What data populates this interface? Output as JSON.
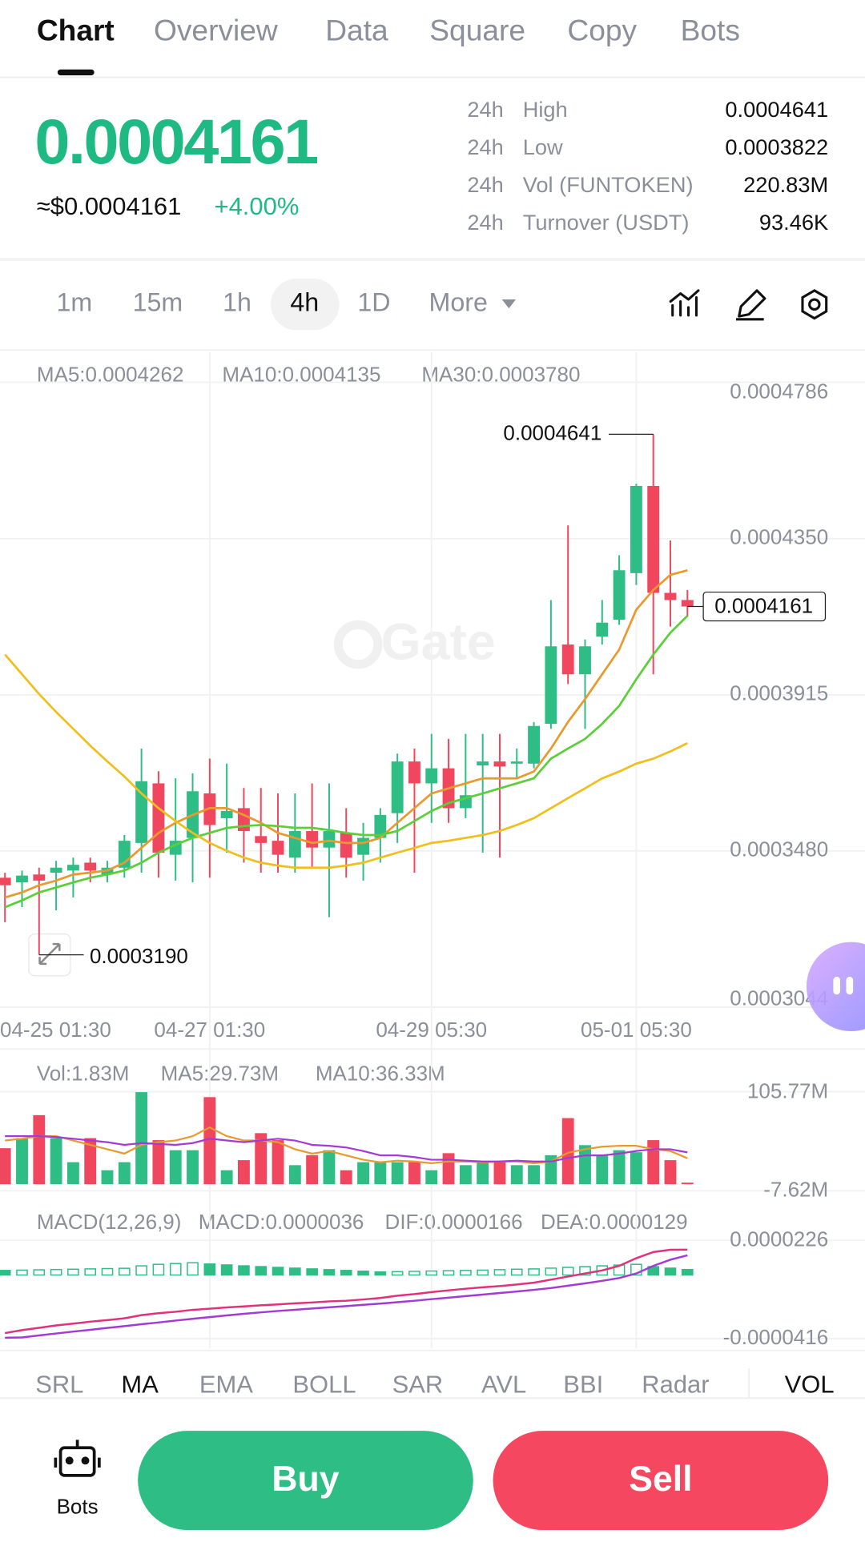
{
  "tabs": [
    "Chart",
    "Overview",
    "Data",
    "Square",
    "Copy",
    "Bots"
  ],
  "price": {
    "last": "0.0004161",
    "usd": "≈$0.0004161",
    "change": "+4.00%"
  },
  "stats": [
    {
      "period": "24h",
      "label": "High",
      "value": "0.0004641"
    },
    {
      "period": "24h",
      "label": "Low",
      "value": "0.0003822"
    },
    {
      "period": "24h",
      "label": "Vol (FUNTOKEN)",
      "value": "220.83M"
    },
    {
      "period": "24h",
      "label": "Turnover (USDT)",
      "value": "93.46K"
    }
  ],
  "intervals": [
    "1m",
    "15m",
    "1h",
    "4h",
    "1D",
    "More"
  ],
  "chart_data": {
    "type": "candlestick",
    "watermark": "Gate",
    "categories": [
      "04-25 01:30",
      null,
      null,
      null,
      null,
      null,
      null,
      null,
      null,
      null,
      null,
      null,
      "04-27 01:30",
      null,
      null,
      null,
      null,
      null,
      null,
      null,
      null,
      null,
      null,
      null,
      null,
      "04-29 05:30",
      null,
      null,
      null,
      null,
      null,
      null,
      null,
      null,
      null,
      null,
      null,
      "05-01 05:30",
      null,
      null,
      null
    ],
    "open": [
      0.0003405,
      0.0003392,
      0.0003414,
      0.0003419,
      0.0003425,
      0.0003447,
      0.0003414,
      0.0003433,
      0.0003502,
      0.0003668,
      0.0003469,
      0.0003516,
      0.000364,
      0.0003571,
      0.0003599,
      0.0003521,
      0.0003508,
      0.0003461,
      0.0003535,
      0.0003489,
      0.000353,
      0.0003469,
      0.0003516,
      0.0003585,
      0.0003729,
      0.0003668,
      0.000371,
      0.0003599,
      0.0003718,
      0.0003729,
      0.0003723,
      0.0003723,
      0.0003834,
      0.0004055,
      0.0003972,
      0.0004077,
      0.0004124,
      0.0004254,
      0.0004497,
      0.0004199,
      0.0004179
    ],
    "high": [
      0.0003419,
      0.0003425,
      0.0003433,
      0.0003452,
      0.0003461,
      0.0003461,
      0.0003452,
      0.0003524,
      0.0003765,
      0.0003702,
      0.0003682,
      0.0003696,
      0.0003737,
      0.0003723,
      0.0003655,
      0.0003655,
      0.000364,
      0.000364,
      0.0003668,
      0.0003668,
      0.0003599,
      0.0003558,
      0.0003599,
      0.0003751,
      0.0003765,
      0.0003806,
      0.0003792,
      0.0003806,
      0.0003806,
      0.0003806,
      0.0003765,
      0.0003839,
      0.0004179,
      0.0004387,
      0.0004069,
      0.0004179,
      0.0004304,
      0.0004503,
      0.0004641,
      0.0004345,
      0.0004207
    ],
    "low": [
      0.0003281,
      0.0003323,
      0.000319,
      0.0003314,
      0.000335,
      0.0003392,
      0.0003392,
      0.0003405,
      0.0003419,
      0.0003405,
      0.0003397,
      0.0003392,
      0.0003405,
      0.0003475,
      0.0003447,
      0.0003419,
      0.0003419,
      0.0003419,
      0.0003433,
      0.0003295,
      0.0003405,
      0.0003397,
      0.0003447,
      0.0003502,
      0.0003419,
      0.0003558,
      0.0003558,
      0.0003571,
      0.0003475,
      0.0003461,
      0.0003682,
      0.000371,
      0.000382,
      0.0003945,
      0.000382,
      0.0004055,
      0.000411,
      0.0004221,
      0.0003972,
      0.0004105,
      0.0004132
    ],
    "close": [
      0.0003384,
      0.0003411,
      0.0003397,
      0.0003433,
      0.0003441,
      0.0003425,
      0.0003433,
      0.0003508,
      0.0003674,
      0.0003475,
      0.0003508,
      0.0003646,
      0.0003552,
      0.0003591,
      0.0003535,
      0.0003502,
      0.0003469,
      0.0003535,
      0.0003489,
      0.0003535,
      0.0003461,
      0.0003516,
      0.000358,
      0.0003729,
      0.0003668,
      0.000371,
      0.0003599,
      0.0003635,
      0.0003729,
      0.0003715,
      0.0003729,
      0.0003828,
      0.000405,
      0.0003972,
      0.000405,
      0.0004116,
      0.0004262,
      0.0004497,
      0.0004199,
      0.0004179,
      0.0004161
    ],
    "up_color": "#2ebd85",
    "down_color": "#f0465e",
    "ma": [
      {
        "label": "MA5:0.0004262",
        "color": "#e89a2e",
        "values": [
          0.000335,
          0.0003364,
          0.0003384,
          0.0003397,
          0.0003414,
          0.0003419,
          0.0003425,
          0.0003447,
          0.0003488,
          0.000353,
          0.0003558,
          0.000358,
          0.0003599,
          0.0003599,
          0.000358,
          0.0003558,
          0.000353,
          0.0003516,
          0.0003502,
          0.0003508,
          0.0003502,
          0.0003502,
          0.0003516,
          0.0003558,
          0.0003599,
          0.000364,
          0.0003654,
          0.0003668,
          0.0003682,
          0.0003682,
          0.0003682,
          0.0003701,
          0.0003765,
          0.0003839,
          0.0003903,
          0.0003972,
          0.0004041,
          0.0004152,
          0.0004207,
          0.0004249,
          0.0004262
        ]
      },
      {
        "label": "MA10:0.0004135",
        "color": "#5bcf3a",
        "values": [
          0.0003323,
          0.0003342,
          0.0003364,
          0.0003378,
          0.0003392,
          0.0003405,
          0.0003414,
          0.0003425,
          0.0003447,
          0.0003475,
          0.0003497,
          0.0003516,
          0.000353,
          0.0003544,
          0.0003549,
          0.0003552,
          0.0003549,
          0.0003544,
          0.0003544,
          0.0003538,
          0.000353,
          0.0003524,
          0.0003524,
          0.0003535,
          0.0003563,
          0.0003591,
          0.0003613,
          0.0003627,
          0.000364,
          0.0003654,
          0.0003668,
          0.0003682,
          0.0003737,
          0.0003765,
          0.0003792,
          0.0003834,
          0.0003884,
          0.0003958,
          0.0004027,
          0.0004088,
          0.0004135
        ]
      },
      {
        "label": "MA30:0.0003780",
        "color": "#efbf1c",
        "values": [
          0.0004027,
          0.0003972,
          0.0003917,
          0.0003867,
          0.000382,
          0.0003773,
          0.0003729,
          0.0003687,
          0.000364,
          0.0003599,
          0.0003563,
          0.000353,
          0.0003502,
          0.000348,
          0.0003461,
          0.0003447,
          0.0003439,
          0.0003433,
          0.0003433,
          0.0003433,
          0.0003439,
          0.0003447,
          0.0003461,
          0.0003475,
          0.0003488,
          0.0003502,
          0.0003508,
          0.0003516,
          0.0003524,
          0.0003535,
          0.0003552,
          0.0003571,
          0.0003599,
          0.0003627,
          0.0003654,
          0.0003682,
          0.0003701,
          0.0003723,
          0.0003737,
          0.0003757,
          0.000378
        ]
      }
    ],
    "ylim": [
      0.0003044,
      0.0004786
    ],
    "yticks": [
      0.0004786,
      {
        "value": 0.000435,
        "label": "0.0004350"
      },
      0.0003915,
      {
        "value": 0.000348,
        "label": "0.0003480"
      },
      0.0003044
    ],
    "grid": true,
    "high_marker": 0.0004641,
    "low_marker": {
      "value": 0.000319,
      "label": "0.0003190"
    },
    "last_price": 0.0004161,
    "volume": {
      "legend": "Vol:1.83M",
      "values": [
        41.2,
        52.7,
        79.0,
        52.7,
        25.2,
        52.7,
        16.0,
        25.2,
        105.3,
        50.4,
        38.9,
        38.9,
        99.6,
        16.0,
        27.5,
        58.4,
        50.4,
        21.8,
        33.2,
        38.9,
        16.0,
        25.2,
        25.2,
        25.2,
        25.2,
        16.0,
        35.5,
        21.8,
        25.2,
        25.2,
        21.8,
        21.8,
        33.2,
        75.6,
        44.7,
        33.2,
        38.9,
        36.6,
        50.4,
        27.5,
        1.83
      ],
      "ylim": [
        -7.62,
        105.77
      ],
      "yticks": [
        {
          "value": 105.77,
          "label": "105.77M"
        },
        {
          "value": -7.62,
          "label": "-7.62M"
        }
      ],
      "ma": [
        {
          "label": "MA5:29.73M",
          "color": "#e89a2e",
          "values": [
            50,
            52,
            55,
            55,
            50,
            45,
            40,
            35,
            45,
            48,
            50,
            55,
            65,
            55,
            50,
            50,
            48,
            40,
            35,
            38,
            33,
            28,
            25,
            27,
            26,
            24,
            26,
            26,
            25,
            26,
            26,
            24,
            26,
            36,
            40,
            43,
            44,
            44,
            40,
            38,
            29.73
          ]
        },
        {
          "label": "MA10:36.33M",
          "color": "#a43ad6",
          "values": [
            55,
            55,
            55,
            54,
            52,
            50,
            48,
            45,
            47,
            46,
            45,
            47,
            52,
            50,
            48,
            50,
            52,
            50,
            45,
            44,
            42,
            38,
            33,
            33,
            31,
            28,
            28,
            27,
            26,
            26,
            27,
            26,
            26,
            30,
            33,
            33,
            35,
            38,
            40,
            40,
            36.33
          ]
        }
      ]
    },
    "macd": {
      "title": "MACD(12,26,9)",
      "macd_label": "MACD:0.0000036",
      "dif_label": "DIF:0.0000166",
      "dea_label": "DEA:0.0000129",
      "macd_color": "#e8bf1a",
      "dif_color": "#e0317a",
      "dea_color": "#a43ad6",
      "histogram": [
        3e-06,
        3.2e-06,
        3.4e-06,
        3.6e-06,
        3.8e-06,
        4e-06,
        4.2e-06,
        4.4e-06,
        6e-06,
        7e-06,
        7.5e-06,
        8e-06,
        7.2e-06,
        6.6e-06,
        6e-06,
        5.5e-06,
        5e-06,
        4.5e-06,
        4e-06,
        3.5e-06,
        3e-06,
        2.5e-06,
        2e-06,
        2.2e-06,
        2.4e-06,
        2.6e-06,
        2.8e-06,
        3e-06,
        3.2e-06,
        3.5e-06,
        3.8e-06,
        4e-06,
        4.5e-06,
        5e-06,
        5.5e-06,
        6e-06,
        6.5e-06,
        7e-06,
        5.5e-06,
        4.5e-06,
        3.6e-06
      ],
      "dif": [
        -3.8e-05,
        -3.6e-05,
        -3.45e-05,
        -3.3e-05,
        -3.18e-05,
        -3.05e-05,
        -2.95e-05,
        -2.83e-05,
        -2.62e-05,
        -2.5e-05,
        -2.4e-05,
        -2.28e-05,
        -2.2e-05,
        -2.12e-05,
        -2.05e-05,
        -1.98e-05,
        -1.92e-05,
        -1.85e-05,
        -1.8e-05,
        -1.72e-05,
        -1.68e-05,
        -1.6e-05,
        -1.5e-05,
        -1.35e-05,
        -1.25e-05,
        -1.12e-05,
        -1e-05,
        -9e-06,
        -8e-06,
        -7.2e-06,
        -6.2e-06,
        -5e-06,
        -3e-06,
        -1e-06,
        1e-06,
        3e-06,
        6e-06,
        1.1e-05,
        1.5e-05,
        1.65e-05,
        1.66e-05
      ],
      "dea": [
        -4.1e-05,
        -4.08e-05,
        -3.95e-05,
        -3.82e-05,
        -3.7e-05,
        -3.58e-05,
        -3.46e-05,
        -3.34e-05,
        -3.22e-05,
        -3.1e-05,
        -2.98e-05,
        -2.86e-05,
        -2.75e-05,
        -2.64e-05,
        -2.54e-05,
        -2.44e-05,
        -2.35e-05,
        -2.27e-05,
        -2.19e-05,
        -2.11e-05,
        -2.03e-05,
        -1.95e-05,
        -1.87e-05,
        -1.78e-05,
        -1.68e-05,
        -1.58e-05,
        -1.48e-05,
        -1.38e-05,
        -1.28e-05,
        -1.18e-05,
        -1.08e-05,
        -9.7e-06,
        -8.5e-06,
        -7e-06,
        -5.5e-06,
        -3.8e-06,
        -2e-06,
        1e-06,
        6e-06,
        1e-05,
        1.29e-05
      ],
      "ylim": [
        -4.16e-05,
        2.26e-05
      ],
      "yticks": [
        2.26e-05,
        -4.16e-05
      ]
    }
  },
  "indicators": [
    "SRL",
    "MA",
    "EMA",
    "BOLL",
    "SAR",
    "AVL",
    "BBI",
    "Radar",
    "VOL"
  ],
  "actions": {
    "bots": "Bots",
    "buy": "Buy",
    "sell": "Sell"
  }
}
